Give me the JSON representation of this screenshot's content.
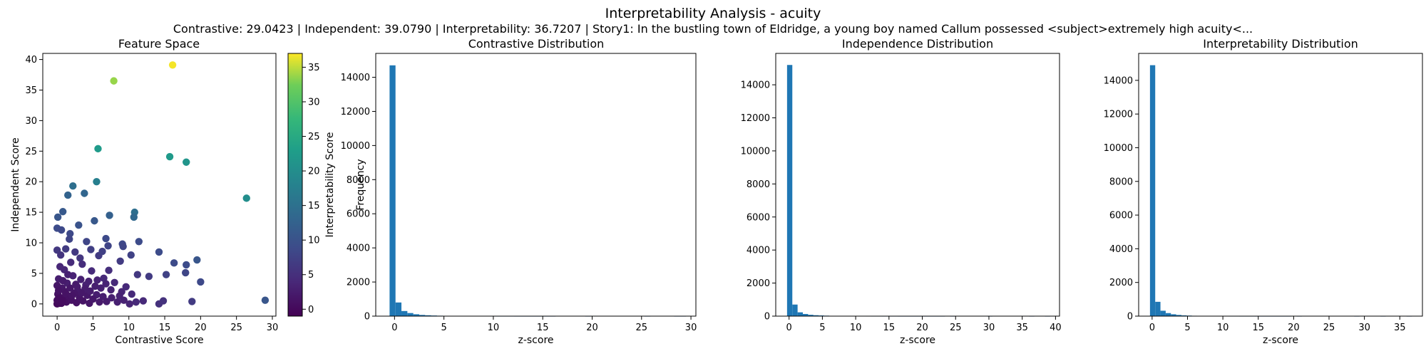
{
  "figure": {
    "title": "Interpretability Analysis - acuity",
    "subtitle": "Contrastive: 29.0423 | Independent: 39.0790 | Interpretability: 36.7207 | Story1: In the bustling town of Eldridge, a young boy named Callum possessed <subject>extremely high acuity<..."
  },
  "chart_data": [
    {
      "type": "scatter",
      "title": "Feature Space",
      "xlabel": "Contrastive Score",
      "ylabel": "Independent Score",
      "xlim": [
        -2,
        30.5
      ],
      "ylim": [
        -2,
        41
      ],
      "xticks": [
        0,
        5,
        10,
        15,
        20,
        25,
        30
      ],
      "yticks": [
        0,
        5,
        10,
        15,
        20,
        25,
        30,
        35,
        40
      ],
      "colorbar": {
        "label": "Interpretability Score",
        "range": [
          -1,
          37
        ],
        "ticks": [
          0,
          5,
          10,
          15,
          20,
          25,
          30,
          35
        ],
        "colormap": "viridis"
      },
      "points": [
        [
          16.1,
          39.1,
          36.7
        ],
        [
          7.9,
          36.5,
          33.6
        ],
        [
          5.7,
          25.4,
          22.2
        ],
        [
          15.7,
          24.1,
          22.0
        ],
        [
          18.0,
          23.2,
          21.3
        ],
        [
          26.4,
          17.3,
          20.1
        ],
        [
          5.5,
          20.0,
          17.5
        ],
        [
          2.2,
          19.3,
          14.5
        ],
        [
          3.8,
          18.1,
          13.0
        ],
        [
          1.5,
          17.8,
          12.5
        ],
        [
          10.8,
          15.0,
          14.5
        ],
        [
          10.7,
          14.2,
          13.3
        ],
        [
          7.3,
          14.5,
          12.0
        ],
        [
          0.8,
          15.1,
          11.0
        ],
        [
          0.1,
          14.2,
          10.5
        ],
        [
          3.0,
          12.9,
          10.0
        ],
        [
          5.2,
          13.6,
          10.8
        ],
        [
          0.0,
          12.4,
          9.0
        ],
        [
          0.6,
          12.1,
          8.5
        ],
        [
          1.8,
          11.5,
          8.5
        ],
        [
          1.7,
          10.6,
          7.8
        ],
        [
          4.1,
          10.2,
          8.0
        ],
        [
          6.8,
          10.7,
          8.7
        ],
        [
          7.1,
          9.5,
          7.8
        ],
        [
          9.1,
          9.8,
          8.5
        ],
        [
          9.2,
          9.4,
          8.0
        ],
        [
          11.4,
          10.2,
          9.0
        ],
        [
          0.0,
          8.8,
          6.0
        ],
        [
          0.5,
          8.0,
          5.5
        ],
        [
          1.2,
          9.0,
          6.5
        ],
        [
          2.5,
          8.5,
          6.2
        ],
        [
          3.2,
          7.5,
          5.8
        ],
        [
          4.7,
          8.9,
          7.0
        ],
        [
          5.8,
          7.9,
          6.5
        ],
        [
          6.3,
          8.6,
          7.2
        ],
        [
          8.8,
          7.0,
          6.5
        ],
        [
          10.3,
          8.0,
          7.5
        ],
        [
          14.2,
          8.5,
          9.0
        ],
        [
          19.5,
          7.2,
          10.5
        ],
        [
          18.0,
          6.4,
          9.0
        ],
        [
          16.3,
          6.7,
          8.8
        ],
        [
          15.2,
          4.8,
          7.5
        ],
        [
          12.8,
          4.5,
          6.5
        ],
        [
          11.2,
          4.8,
          6.0
        ],
        [
          17.9,
          5.1,
          8.0
        ],
        [
          20.0,
          3.6,
          8.5
        ],
        [
          18.8,
          0.4,
          6.5
        ],
        [
          29.0,
          0.6,
          10.5
        ],
        [
          14.2,
          0.0,
          5.0
        ],
        [
          14.8,
          0.5,
          5.2
        ],
        [
          11.0,
          0.3,
          4.0
        ],
        [
          10.4,
          1.6,
          4.0
        ],
        [
          9.0,
          2.0,
          3.5
        ],
        [
          9.6,
          2.8,
          4.0
        ],
        [
          10.1,
          0.0,
          3.5
        ],
        [
          8.0,
          3.5,
          4.0
        ],
        [
          7.2,
          5.5,
          4.8
        ],
        [
          6.5,
          4.2,
          4.0
        ],
        [
          5.5,
          1.5,
          2.5
        ],
        [
          4.8,
          5.4,
          4.2
        ],
        [
          4.0,
          3.1,
          3.0
        ],
        [
          3.5,
          6.5,
          4.5
        ],
        [
          2.9,
          2.2,
          2.2
        ],
        [
          2.2,
          4.6,
          3.2
        ],
        [
          1.9,
          6.8,
          4.2
        ],
        [
          1.4,
          3.4,
          2.5
        ],
        [
          1.0,
          5.6,
          3.5
        ],
        [
          0.7,
          2.6,
          1.8
        ],
        [
          0.4,
          6.1,
          3.6
        ],
        [
          0.2,
          4.1,
          2.5
        ],
        [
          0.1,
          1.6,
          1.0
        ],
        [
          0.3,
          0.5,
          0.5
        ],
        [
          0.6,
          0.1,
          0.3
        ],
        [
          0.9,
          0.8,
          0.6
        ],
        [
          1.3,
          0.3,
          0.7
        ],
        [
          1.6,
          1.3,
          1.0
        ],
        [
          2.0,
          0.6,
          1.0
        ],
        [
          2.4,
          1.8,
          1.5
        ],
        [
          2.7,
          0.2,
          1.0
        ],
        [
          3.1,
          1.1,
          1.4
        ],
        [
          3.6,
          0.5,
          1.3
        ],
        [
          4.2,
          1.4,
          1.8
        ],
        [
          4.5,
          0.1,
          1.5
        ],
        [
          5.0,
          0.8,
          1.8
        ],
        [
          5.9,
          0.3,
          2.0
        ],
        [
          6.4,
          1.2,
          2.5
        ],
        [
          6.9,
          0.4,
          2.3
        ],
        [
          7.6,
          1.0,
          2.8
        ],
        [
          8.4,
          0.3,
          2.8
        ],
        [
          8.7,
          1.3,
          3.2
        ],
        [
          9.3,
          0.6,
          3.2
        ],
        [
          12.0,
          0.5,
          4.0
        ],
        [
          0.0,
          3.0,
          1.5
        ],
        [
          0.2,
          2.2,
          1.2
        ],
        [
          0.5,
          1.0,
          0.7
        ],
        [
          0.8,
          3.8,
          2.2
        ],
        [
          1.1,
          2.0,
          1.4
        ],
        [
          1.5,
          4.8,
          2.8
        ],
        [
          2.6,
          3.2,
          2.2
        ],
        [
          3.3,
          4.0,
          2.8
        ],
        [
          3.9,
          2.5,
          2.4
        ],
        [
          4.4,
          3.7,
          2.9
        ],
        [
          5.3,
          2.9,
          2.7
        ],
        [
          6.1,
          2.6,
          2.8
        ],
        [
          6.8,
          3.3,
          3.2
        ],
        [
          7.5,
          2.3,
          3.1
        ],
        [
          0.0,
          0.0,
          0.0
        ],
        [
          0.1,
          0.2,
          0.1
        ],
        [
          0.3,
          0.1,
          0.1
        ],
        [
          0.4,
          0.3,
          0.2
        ],
        [
          0.0,
          0.6,
          0.3
        ],
        [
          0.2,
          0.9,
          0.5
        ],
        [
          0.7,
          0.5,
          0.4
        ],
        [
          1.2,
          1.7,
          1.1
        ],
        [
          1.8,
          2.6,
          1.7
        ],
        [
          2.1,
          1.4,
          1.3
        ],
        [
          2.8,
          2.8,
          2.0
        ],
        [
          3.4,
          1.8,
          1.8
        ],
        [
          4.6,
          2.1,
          2.3
        ],
        [
          5.6,
          3.9,
          3.2
        ]
      ]
    },
    {
      "type": "bar",
      "title": "Contrastive Distribution",
      "xlabel": "z-score",
      "ylabel": "Frequency",
      "xlim": [
        -1.9,
        30.5
      ],
      "ylim": [
        0,
        15400
      ],
      "xticks": [
        0,
        5,
        10,
        15,
        20,
        25,
        30
      ],
      "yticks": [
        0,
        2000,
        4000,
        6000,
        8000,
        10000,
        12000,
        14000
      ],
      "bin_start": -0.5,
      "bin_width": 0.6,
      "values": [
        14700,
        800,
        300,
        180,
        110,
        70,
        50,
        35,
        25,
        18,
        12,
        10,
        8,
        6,
        5,
        4,
        6,
        3,
        2,
        2,
        2,
        1,
        1,
        1,
        1,
        1,
        1,
        1,
        0,
        0,
        0,
        0,
        0,
        1,
        0,
        0,
        0,
        0,
        0,
        0,
        0,
        0,
        0,
        1,
        0,
        0,
        0,
        0,
        1,
        1
      ]
    },
    {
      "type": "bar",
      "title": "Independence Distribution",
      "xlabel": "z-score",
      "ylabel": "",
      "xlim": [
        -2.0,
        40.6
      ],
      "ylim": [
        0,
        15900
      ],
      "xticks": [
        0,
        5,
        10,
        15,
        20,
        25,
        30,
        35,
        40
      ],
      "yticks": [
        0,
        2000,
        4000,
        6000,
        8000,
        10000,
        12000,
        14000
      ],
      "bin_start": -0.3,
      "bin_width": 0.79,
      "values": [
        15200,
        700,
        230,
        130,
        80,
        55,
        40,
        28,
        20,
        15,
        12,
        9,
        7,
        6,
        5,
        4,
        3,
        3,
        2,
        2,
        2,
        1,
        1,
        1,
        1,
        1,
        1,
        1,
        1,
        1,
        0,
        1,
        0,
        0,
        0,
        0,
        0,
        0,
        1,
        0,
        0,
        0,
        0,
        0,
        0,
        0,
        1,
        0,
        0,
        1
      ]
    },
    {
      "type": "bar",
      "title": "Interpretability Distribution",
      "xlabel": "z-score",
      "ylabel": "",
      "xlim": [
        -1.9,
        38.2
      ],
      "ylim": [
        0,
        15600
      ],
      "xticks": [
        0,
        5,
        10,
        15,
        20,
        25,
        30,
        35
      ],
      "yticks": [
        0,
        2000,
        4000,
        6000,
        8000,
        10000,
        12000,
        14000
      ],
      "bin_start": -0.3,
      "bin_width": 0.74,
      "values": [
        14900,
        850,
        320,
        180,
        110,
        70,
        45,
        32,
        22,
        16,
        12,
        9,
        7,
        5,
        4,
        3,
        3,
        2,
        2,
        2,
        1,
        1,
        1,
        1,
        1,
        1,
        1,
        0,
        1,
        0,
        0,
        0,
        0,
        0,
        0,
        0,
        0,
        0,
        0,
        1,
        0,
        0,
        0,
        0,
        1,
        0,
        0,
        0,
        0,
        1
      ]
    }
  ]
}
